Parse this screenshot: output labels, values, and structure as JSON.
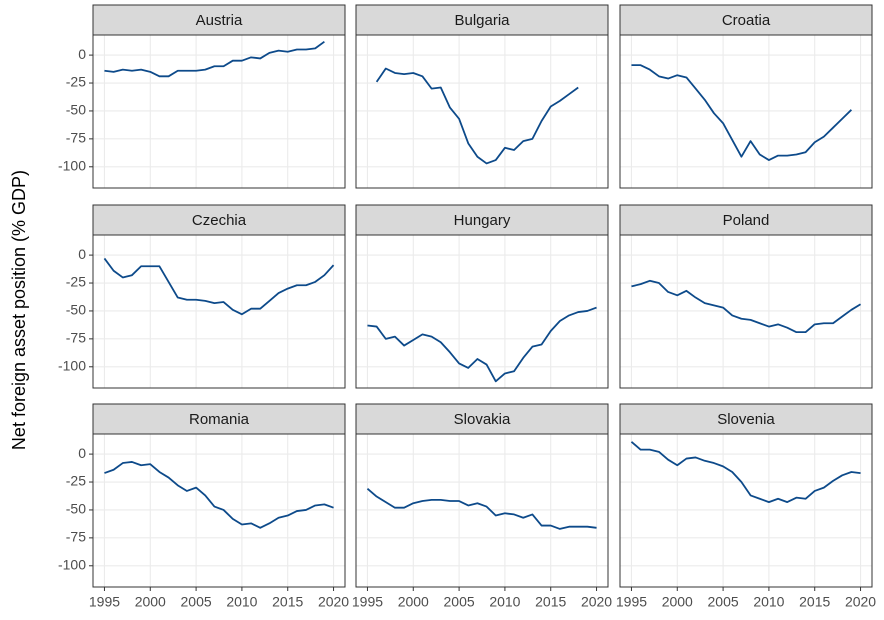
{
  "chart_data": {
    "type": "line",
    "y_label": "Net foreign asset position (% GDP)",
    "color": "#0d4a8a",
    "grid": true,
    "xlim": [
      1993.75,
      2021.25
    ],
    "xticks": [
      1995,
      2000,
      2005,
      2010,
      2015,
      2020
    ],
    "ylim": [
      -119,
      18
    ],
    "yticks": [
      -100,
      -75,
      -50,
      -25,
      0
    ],
    "x": [
      1995,
      1996,
      1997,
      1998,
      1999,
      2000,
      2001,
      2002,
      2003,
      2004,
      2005,
      2006,
      2007,
      2008,
      2009,
      2010,
      2011,
      2012,
      2013,
      2014,
      2015,
      2016,
      2017,
      2018,
      2019,
      2020
    ],
    "panels": [
      {
        "title": "Austria",
        "values": [
          -14,
          -15,
          -13,
          -14,
          -13,
          -15,
          -19,
          -19,
          -14,
          -14,
          -14,
          -13,
          -10,
          -10,
          -5,
          -5,
          -2,
          -3,
          2,
          4,
          3,
          5,
          5,
          6,
          12,
          null
        ]
      },
      {
        "title": "Bulgaria",
        "values": [
          null,
          -24,
          -12,
          -16,
          -17,
          -16,
          -19,
          -30,
          -29,
          -47,
          -57,
          -79,
          -91,
          -97,
          -94,
          -83,
          -85,
          -77,
          -75,
          -59,
          -46,
          -41,
          -35,
          -29,
          null,
          null
        ]
      },
      {
        "title": "Croatia",
        "values": [
          -9,
          -9,
          -13,
          -19,
          -21,
          -18,
          -20,
          -30,
          -40,
          -52,
          -61,
          -76,
          -91,
          -77,
          -89,
          -94,
          -90,
          -90,
          -89,
          -87,
          -78,
          -73,
          -65,
          -57,
          -49,
          null
        ]
      },
      {
        "title": "Czechia",
        "values": [
          -3,
          -14,
          -20,
          -18,
          -10,
          -10,
          -10,
          -24,
          -38,
          -40,
          -40,
          -41,
          -43,
          -42,
          -49,
          -53,
          -48,
          -48,
          -41,
          -34,
          -30,
          -27,
          -27,
          -24,
          -18,
          -9
        ]
      },
      {
        "title": "Hungary",
        "values": [
          -63,
          -64,
          -75,
          -73,
          -81,
          -76,
          -71,
          -73,
          -78,
          -87,
          -97,
          -101,
          -93,
          -98,
          -113,
          -106,
          -104,
          -92,
          -82,
          -80,
          -68,
          -59,
          -54,
          -51,
          -50,
          -47
        ]
      },
      {
        "title": "Poland",
        "values": [
          -28,
          -26,
          -23,
          -25,
          -33,
          -36,
          -32,
          -38,
          -43,
          -45,
          -47,
          -54,
          -57,
          -58,
          -61,
          -64,
          -62,
          -65,
          -69,
          -69,
          -62,
          -61,
          -61,
          -55,
          -49,
          -44
        ]
      },
      {
        "title": "Romania",
        "values": [
          -17,
          -14,
          -8,
          -7,
          -10,
          -9,
          -16,
          -21,
          -28,
          -33,
          -30,
          -37,
          -47,
          -50,
          -58,
          -63,
          -62,
          -66,
          -62,
          -57,
          -55,
          -51,
          -50,
          -46,
          -45,
          -48
        ]
      },
      {
        "title": "Slovakia",
        "values": [
          -31,
          -38,
          -43,
          -48,
          -48,
          -44,
          -42,
          -41,
          -41,
          -42,
          -42,
          -46,
          -44,
          -47,
          -55,
          -53,
          -54,
          -57,
          -54,
          -64,
          -64,
          -67,
          -65,
          -65,
          -65,
          -66
        ]
      },
      {
        "title": "Slovenia",
        "values": [
          11,
          4,
          4,
          2,
          -5,
          -10,
          -4,
          -3,
          -6,
          -8,
          -11,
          -16,
          -25,
          -37,
          -40,
          -43,
          -40,
          -43,
          -39,
          -40,
          -33,
          -30,
          -24,
          -19,
          -16,
          -17
        ]
      }
    ]
  }
}
